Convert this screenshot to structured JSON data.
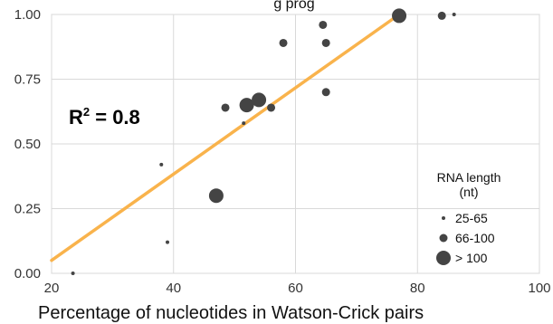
{
  "chart_data": {
    "type": "scatter",
    "title": "g prog",
    "xlabel": "Percentage of nucleotides in Watson-Crick pairs",
    "ylabel": "",
    "xlim": [
      20,
      100
    ],
    "ylim": [
      0,
      1
    ],
    "xticks": [
      20,
      40,
      60,
      80,
      100
    ],
    "xtick_labels": [
      "20",
      "40",
      "60",
      "80",
      "100"
    ],
    "yticks": [
      0,
      0.25,
      0.5,
      0.75,
      1.0
    ],
    "ytick_labels": [
      "0.00",
      "0.25",
      "0.50",
      "0.75",
      "1.00"
    ],
    "grid": true,
    "annotation": {
      "base": "R",
      "sup": "2",
      "rest": " = 0.8"
    },
    "trendline": {
      "x": [
        20,
        77
      ],
      "y": [
        0.05,
        1.0
      ],
      "color": "#f9b34c"
    },
    "point_color": "#444444",
    "legend": {
      "title_line1": "RNA length",
      "title_line2": "(nt)",
      "placement": "lower-right",
      "entries": [
        {
          "label": "25-65",
          "size": "small"
        },
        {
          "label": "66-100",
          "size": "medium"
        },
        {
          "label": "> 100",
          "size": "large"
        }
      ]
    },
    "points": [
      {
        "x": 23.5,
        "y": 0.0,
        "size": "small"
      },
      {
        "x": 38,
        "y": 0.42,
        "size": "small"
      },
      {
        "x": 39,
        "y": 0.12,
        "size": "small"
      },
      {
        "x": 47,
        "y": 0.3,
        "size": "large"
      },
      {
        "x": 48.5,
        "y": 0.64,
        "size": "medium"
      },
      {
        "x": 51.5,
        "y": 0.58,
        "size": "small"
      },
      {
        "x": 52,
        "y": 0.65,
        "size": "large"
      },
      {
        "x": 54,
        "y": 0.67,
        "size": "large"
      },
      {
        "x": 56,
        "y": 0.64,
        "size": "medium"
      },
      {
        "x": 58,
        "y": 0.89,
        "size": "medium"
      },
      {
        "x": 64.5,
        "y": 0.96,
        "size": "medium"
      },
      {
        "x": 65,
        "y": 0.89,
        "size": "medium"
      },
      {
        "x": 65,
        "y": 0.7,
        "size": "medium"
      },
      {
        "x": 77,
        "y": 0.995,
        "size": "large"
      },
      {
        "x": 84,
        "y": 0.995,
        "size": "medium"
      },
      {
        "x": 86,
        "y": 1.0,
        "size": "small"
      }
    ]
  }
}
